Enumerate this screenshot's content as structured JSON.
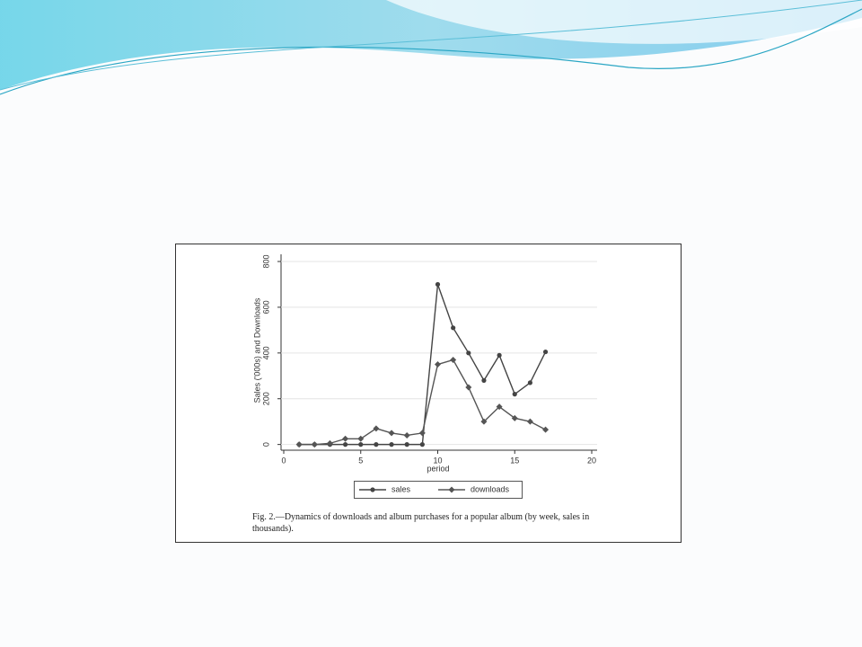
{
  "chart_data": {
    "type": "line",
    "ylabel": "Sales ('000s) and Downloads",
    "xlabel": "period",
    "caption": "Fig. 2.—Dynamics of downloads and album purchases for a popular album (by week, sales in thousands).",
    "x": [
      1,
      2,
      3,
      4,
      5,
      6,
      7,
      8,
      9,
      10,
      11,
      12,
      13,
      14,
      15,
      16,
      17
    ],
    "series": [
      {
        "name": "sales",
        "color": "#444444",
        "marker": "circle",
        "values": [
          0,
          0,
          0,
          0,
          0,
          0,
          0,
          0,
          0,
          700,
          510,
          400,
          280,
          390,
          220,
          270,
          405
        ]
      },
      {
        "name": "downloads",
        "color": "#555555",
        "marker": "diamond",
        "values": [
          0,
          0,
          5,
          25,
          25,
          70,
          50,
          40,
          50,
          350,
          370,
          250,
          100,
          165,
          115,
          100,
          65
        ]
      }
    ],
    "xlim": [
      0,
      20
    ],
    "xticks": [
      0,
      5,
      10,
      15,
      20
    ],
    "ylim": [
      -25,
      800
    ],
    "yticks": [
      0,
      200,
      400,
      600,
      800
    ],
    "grid": true,
    "legend": "bottom"
  }
}
